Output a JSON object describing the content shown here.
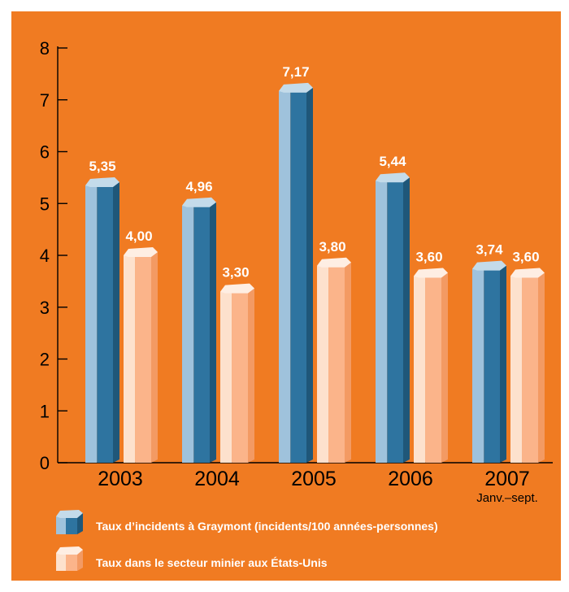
{
  "chart_data": {
    "type": "bar",
    "categories": [
      "2003",
      "2004",
      "2005",
      "2006",
      "2007"
    ],
    "category_sublabels": [
      "",
      "",
      "",
      "",
      "Janv.–sept."
    ],
    "series": [
      {
        "name": "Taux d’incidents à Graymont (incidents/100 années-personnes)",
        "values": [
          5.35,
          4.96,
          7.17,
          5.44,
          3.74
        ],
        "value_labels": [
          "5,35",
          "4,96",
          "7,17",
          "5,44",
          "3,74"
        ],
        "color": "#2e74a0"
      },
      {
        "name": "Taux dans le secteur minier aux États-Unis",
        "values": [
          4.0,
          3.3,
          3.8,
          3.6,
          3.6
        ],
        "value_labels": [
          "4,00",
          "3,30",
          "3,80",
          "3,60",
          "3,60"
        ],
        "color": "#fbb48a"
      }
    ],
    "yticks": [
      "0",
      "1",
      "2",
      "3",
      "4",
      "5",
      "6",
      "7",
      "8"
    ],
    "ylim": [
      0,
      8
    ],
    "title": "",
    "xlabel": "",
    "ylabel": "",
    "legend_placement": "bottom",
    "background_color": "#f07b22"
  }
}
